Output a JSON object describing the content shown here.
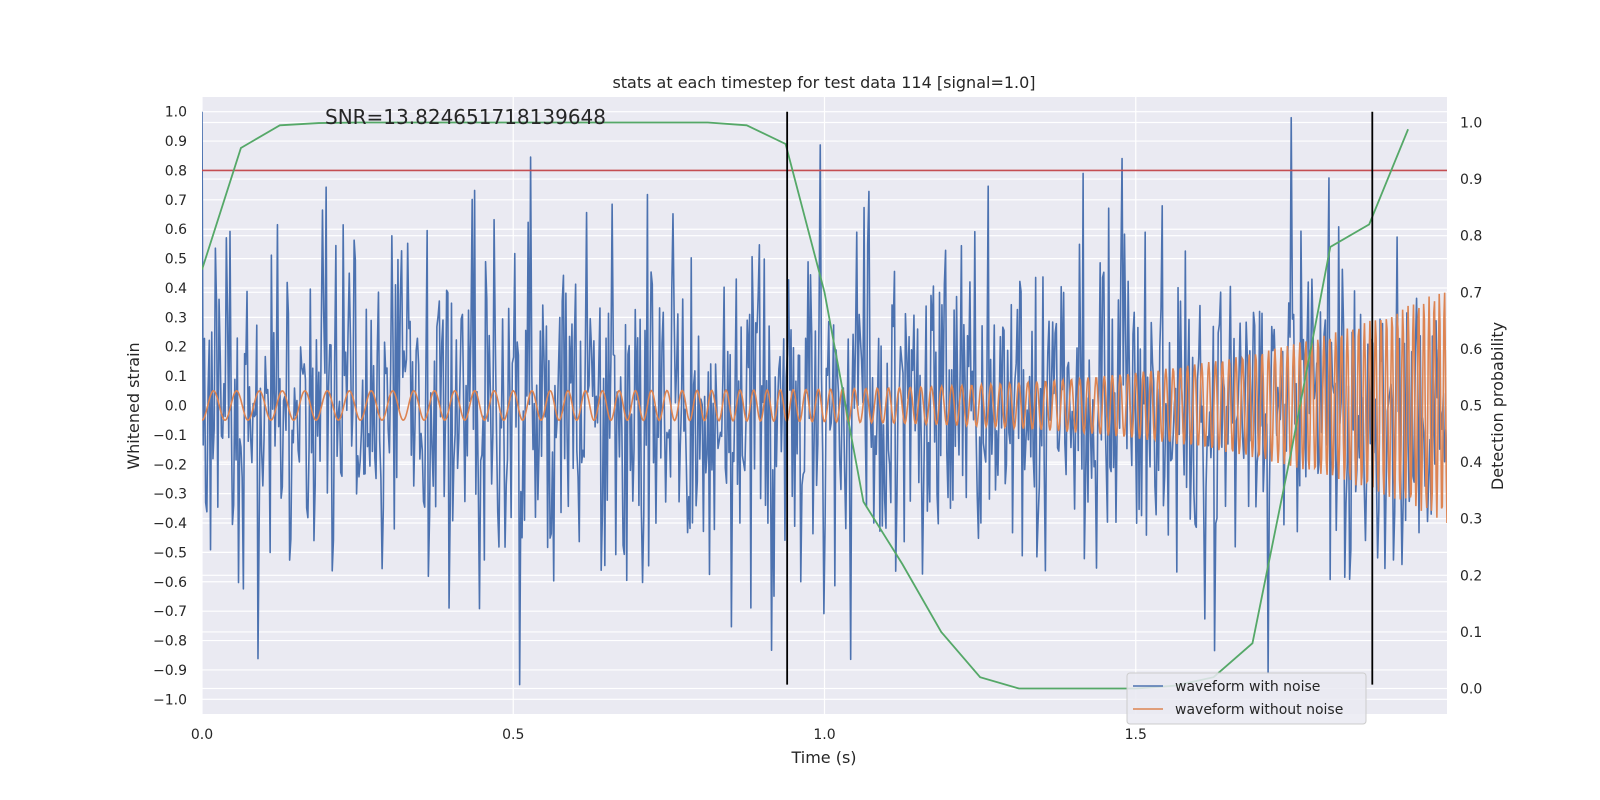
{
  "chart_data": {
    "type": "line",
    "title": "stats at each timestep for test data 114 [signal=1.0]",
    "xlabel": "Time (s)",
    "ylabel": "Whitened strain",
    "y2label": "Detection probability",
    "xlim": [
      0.0,
      2.0
    ],
    "ylim": [
      -1.05,
      1.05
    ],
    "y2lim": [
      -0.045,
      1.045
    ],
    "x_ticks": [
      0.0,
      0.5,
      1.0,
      1.5
    ],
    "x_tick_labels": [
      "0.0",
      "0.5",
      "1.0",
      "1.5"
    ],
    "y_ticks": [
      1.0,
      0.9,
      0.8,
      0.7,
      0.6,
      0.5,
      0.4,
      0.3,
      0.2,
      0.1,
      0.0,
      -0.1,
      -0.2,
      -0.3,
      -0.4,
      -0.5,
      -0.6,
      -0.7,
      -0.8,
      -0.9,
      -1.0
    ],
    "y_tick_labels": [
      "1.0",
      "0.9",
      "0.8",
      "0.7",
      "0.6",
      "0.5",
      "0.4",
      "0.3",
      "0.2",
      "0.1",
      "0.0",
      "−0.1",
      "−0.2",
      "−0.3",
      "−0.4",
      "−0.5",
      "−0.6",
      "−0.7",
      "−0.8",
      "−0.9",
      "−1.0"
    ],
    "y2_ticks": [
      1.0,
      0.9,
      0.8,
      0.7,
      0.6,
      0.5,
      0.4,
      0.3,
      0.2,
      0.1,
      0.0
    ],
    "y2_tick_labels": [
      "1.0",
      "0.9",
      "0.8",
      "0.7",
      "0.6",
      "0.5",
      "0.4",
      "0.3",
      "0.2",
      "0.1",
      "0.0"
    ],
    "grid": true,
    "legend_position": "lower-right",
    "annotation": "SNR=13.824651718139648",
    "threshold": 0.8,
    "event_markers_x": [
      0.94,
      1.88
    ],
    "series": [
      {
        "name": "waveform with noise",
        "axis": "left",
        "color": "#4c72b0",
        "x_range": [
          0.0,
          2.0
        ],
        "n_points": 1024,
        "visible_range": [
          -0.95,
          1.0
        ],
        "description_of_values": "dense random noise"
      },
      {
        "name": "waveform without noise",
        "axis": "left",
        "color": "#dd8452",
        "x_range": [
          0.0,
          2.0
        ],
        "amplitude_start": 0.05,
        "amplitude_end": 0.4
      },
      {
        "axis": "right",
        "color": "#55a868",
        "x": [
          0.0,
          0.0625,
          0.125,
          0.1875,
          0.25,
          0.3125,
          0.375,
          0.4375,
          0.5,
          0.5625,
          0.625,
          0.6875,
          0.75,
          0.8125,
          0.875,
          0.9375,
          1.0,
          1.0625,
          1.125,
          1.1875,
          1.25,
          1.3125,
          1.375,
          1.4375,
          1.5,
          1.5625,
          1.625,
          1.6875,
          1.75,
          1.8125,
          1.875,
          1.9375
        ],
        "values": [
          0.74,
          0.955,
          0.995,
          0.999,
          1.0,
          1.0,
          1.0,
          1.0,
          1.0,
          1.0,
          1.0,
          1.0,
          1.0,
          1.0,
          0.995,
          0.962,
          0.7,
          0.33,
          0.22,
          0.1,
          0.02,
          0.0,
          0.0,
          0.0,
          0.0,
          0.005,
          0.02,
          0.08,
          0.42,
          0.78,
          0.82,
          0.988
        ]
      }
    ],
    "colors": {
      "plot_background": "#eaeaf2",
      "grid": "#ffffff",
      "threshold_line": "#c44e52",
      "event_marker": "#000000",
      "legend_frame": "#cccccc"
    }
  }
}
